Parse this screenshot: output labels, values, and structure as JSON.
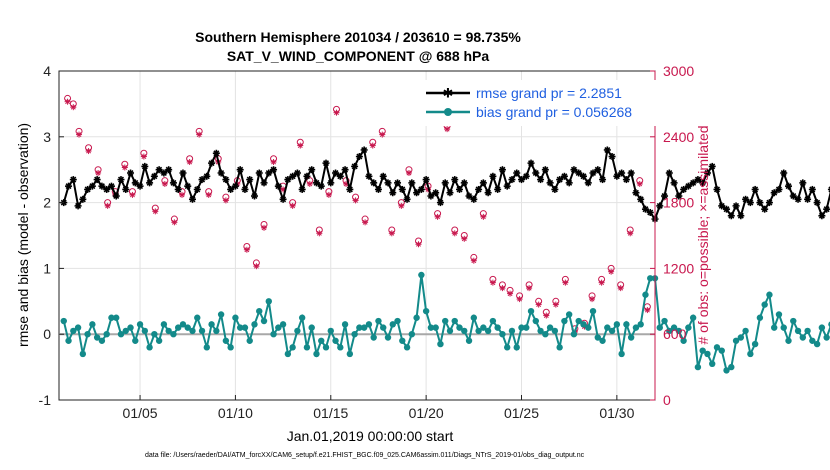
{
  "chart_data": {
    "type": "line",
    "title": "Southern Hemisphere 201034 / 203610 = 98.735%",
    "subtitle": "SAT_V_WIND_COMPONENT @ 688 hPa",
    "xlabel": "Jan.01,2019 00:00:00 start",
    "ylabel_left": "rmse and bias (model - observation)",
    "ylabel_right": "# of obs: o=possible; ×=assimilated",
    "xlim": [
      0.75,
      32.0
    ],
    "ylim_left": [
      -1,
      4
    ],
    "ylim_right": [
      0,
      3000
    ],
    "x_ticks": [
      5,
      10,
      15,
      20,
      25,
      30
    ],
    "x_tick_labels": [
      "01/05",
      "01/10",
      "01/15",
      "01/20",
      "01/25",
      "01/30"
    ],
    "y_ticks_left": [
      -1,
      0,
      1,
      2,
      3,
      4
    ],
    "y_ticks_left_labels": [
      "-1",
      "0",
      "1",
      "2",
      "3",
      "4"
    ],
    "y_ticks_right": [
      0,
      600,
      1200,
      1800,
      2400,
      3000
    ],
    "y_ticks_right_labels": [
      "0",
      "600",
      "1200",
      "1800",
      "2400",
      "3000"
    ],
    "zero_line": 0,
    "time_step_days": 0.25,
    "start_day": 1.0,
    "series": [
      {
        "name": "rmse grand pr = 2.2851",
        "color": "#000000",
        "marker": "asterisk",
        "values": [
          2.0,
          2.25,
          2.35,
          1.95,
          2.05,
          2.2,
          2.25,
          2.35,
          2.25,
          2.2,
          2.25,
          2.1,
          2.35,
          2.2,
          2.45,
          2.3,
          2.25,
          2.55,
          2.3,
          2.4,
          2.5,
          2.45,
          2.5,
          2.3,
          2.2,
          2.45,
          2.25,
          2.05,
          2.2,
          2.35,
          2.4,
          2.6,
          2.75,
          2.45,
          2.35,
          2.2,
          2.25,
          2.5,
          2.2,
          2.35,
          2.1,
          2.45,
          2.3,
          2.45,
          2.5,
          2.25,
          2.05,
          2.35,
          2.4,
          2.45,
          2.2,
          2.4,
          2.5,
          2.3,
          2.25,
          2.6,
          2.3,
          2.45,
          2.4,
          2.5,
          2.2,
          2.55,
          2.7,
          2.8,
          2.4,
          2.3,
          2.2,
          2.4,
          2.3,
          2.15,
          2.3,
          2.2,
          2.05,
          2.3,
          2.15,
          2.2,
          2.35,
          2.1,
          2.15,
          2.0,
          2.3,
          2.15,
          2.35,
          2.2,
          2.3,
          2.1,
          2.05,
          2.2,
          2.3,
          2.15,
          2.4,
          2.2,
          2.5,
          2.25,
          2.35,
          2.45,
          2.35,
          2.4,
          2.6,
          2.45,
          2.35,
          2.5,
          2.3,
          2.2,
          2.35,
          2.4,
          2.3,
          2.5,
          2.45,
          2.4,
          2.3,
          2.45,
          2.5,
          2.35,
          2.8,
          2.7,
          2.4,
          2.45,
          2.35,
          2.45,
          2.15,
          2.05,
          1.9,
          1.85,
          1.75,
          1.95,
          2.1,
          2.45,
          2.3,
          2.1,
          2.2,
          2.25,
          2.3,
          2.35,
          2.3,
          2.45,
          2.55,
          2.2,
          1.95,
          1.9,
          1.8,
          1.95,
          1.8,
          2.05,
          2.0,
          2.2,
          2.0,
          1.9,
          2.0,
          2.15,
          2.2,
          2.45,
          2.25,
          2.1,
          2.05,
          2.3,
          2.05,
          2.2,
          2.0,
          1.8,
          1.9,
          2.2,
          2.5,
          2.15,
          2.45,
          2.3,
          2.05,
          1.9,
          2.0,
          1.8,
          1.75,
          2.05,
          2.0,
          2.0,
          2.05,
          2.1,
          2.25,
          1.85,
          2.0,
          1.95,
          2.0,
          2.1,
          2.2,
          2.05,
          1.95,
          1.85,
          1.8,
          1.95,
          2.05,
          1.95,
          2.0,
          2.15,
          2.05,
          2.1,
          2.15
        ]
      },
      {
        "name": "bias grand pr = 0.056268",
        "color": "#138A8A",
        "marker": "circle",
        "values": [
          0.2,
          -0.1,
          0.05,
          0.1,
          -0.3,
          0.0,
          0.15,
          -0.05,
          -0.1,
          0.0,
          0.25,
          0.25,
          0.0,
          0.05,
          0.1,
          -0.1,
          0.15,
          0.05,
          -0.2,
          0.0,
          -0.1,
          0.15,
          0.05,
          0.0,
          0.1,
          0.15,
          0.1,
          0.05,
          0.25,
          0.05,
          -0.2,
          0.15,
          0.05,
          0.3,
          -0.1,
          -0.2,
          0.25,
          0.1,
          0.1,
          -0.1,
          0.15,
          0.35,
          0.2,
          0.5,
          0.0,
          0.1,
          0.15,
          -0.3,
          -0.2,
          0.05,
          0.25,
          -0.2,
          0.1,
          -0.3,
          -0.1,
          -0.2,
          0.05,
          -0.1,
          -0.2,
          0.15,
          -0.3,
          0.0,
          0.1,
          0.1,
          0.15,
          -0.05,
          0.2,
          0.1,
          -0.05,
          0.15,
          0.2,
          -0.1,
          -0.2,
          0.0,
          0.25,
          0.9,
          0.35,
          0.1,
          0.1,
          -0.15,
          0.2,
          0.05,
          0.2,
          0.1,
          0.05,
          -0.1,
          0.25,
          0.05,
          0.1,
          0.05,
          0.2,
          0.1,
          0.0,
          -0.2,
          0.05,
          -0.2,
          0.1,
          0.1,
          0.35,
          0.2,
          0.05,
          0.0,
          0.1,
          0.05,
          -0.2,
          0.2,
          0.3,
          0.0,
          0.2,
          0.15,
          0.1,
          0.35,
          -0.05,
          -0.1,
          0.1,
          0.05,
          0.15,
          -0.3,
          0.15,
          -0.05,
          0.1,
          0.15,
          0.6,
          0.85,
          0.85,
          0.1,
          0.2,
          0.05,
          0.1,
          0.05,
          -0.1,
          0.1,
          0.25,
          -0.5,
          -0.25,
          -0.3,
          -0.45,
          -0.2,
          -0.25,
          -0.55,
          -0.5,
          -0.1,
          -0.05,
          0.05,
          -0.3,
          -0.15,
          0.25,
          0.45,
          0.6,
          0.1,
          0.3,
          0.1,
          -0.1,
          0.2,
          0.05,
          -0.05,
          0.05,
          -0.1,
          -0.15,
          0.1,
          -0.05,
          0.15,
          0.0,
          0.15,
          0.25,
          0.35,
          0.65,
          0.7,
          0.65,
          0.7,
          0.7,
          0.55,
          0.2,
          -0.1,
          -0.4,
          -0.2,
          -0.1,
          -0.05,
          0.1,
          0.25,
          0.15,
          0.1
        ]
      }
    ],
    "obs_possible": {
      "marker": "o",
      "color": "#C8184E",
      "x": [
        1.2,
        1.5,
        1.8,
        2.3,
        2.8,
        3.3,
        3.7,
        4.2,
        4.6,
        5.2,
        5.8,
        6.3,
        6.8,
        7.2,
        7.6,
        8.1,
        8.6,
        9.1,
        9.5,
        10.1,
        10.6,
        11.1,
        11.5,
        12.0,
        12.5,
        13.0,
        13.4,
        13.9,
        14.4,
        14.9,
        15.3,
        15.8,
        16.3,
        16.8,
        17.2,
        17.7,
        18.2,
        18.7,
        19.1,
        19.6,
        20.1,
        20.6,
        21.1,
        21.5,
        22.0,
        22.5,
        23.0,
        23.5,
        24.0,
        24.4,
        24.9,
        25.4,
        25.9,
        26.3,
        26.8,
        27.3,
        27.8,
        28.3,
        28.7,
        29.2,
        29.7,
        30.2,
        30.7,
        31.2,
        31.6
      ],
      "values": [
        2750,
        2700,
        2450,
        2300,
        2100,
        1800,
        1900,
        2150,
        1900,
        2250,
        1750,
        2000,
        1650,
        1900,
        2200,
        2450,
        1900,
        2200,
        1850,
        2000,
        1400,
        1250,
        1600,
        2200,
        1950,
        1800,
        2350,
        2000,
        1550,
        1900,
        2650,
        2000,
        1850,
        1650,
        2350,
        2450,
        1550,
        1800,
        2100,
        1450,
        1950,
        1700,
        2500,
        1550,
        1500,
        1300,
        1700,
        1100,
        1050,
        1000,
        950,
        1050,
        900,
        800,
        900,
        1100,
        650,
        700,
        950,
        1100,
        1200,
        1050,
        1550,
        2000,
        850
      ]
    },
    "obs_assimilated": {
      "marker": "asterisk",
      "color": "#C8184E",
      "x": [
        1.2,
        1.5,
        1.8,
        2.3,
        2.8,
        3.3,
        3.7,
        4.2,
        4.6,
        5.2,
        5.8,
        6.3,
        6.8,
        7.2,
        7.6,
        8.1,
        8.6,
        9.1,
        9.5,
        10.1,
        10.6,
        11.1,
        11.5,
        12.0,
        12.5,
        13.0,
        13.4,
        13.9,
        14.4,
        14.9,
        15.3,
        15.8,
        16.3,
        16.8,
        17.2,
        17.7,
        18.2,
        18.7,
        19.1,
        19.6,
        20.1,
        20.6,
        21.1,
        21.5,
        22.0,
        22.5,
        23.0,
        23.5,
        24.0,
        24.4,
        24.9,
        25.4,
        25.9,
        26.3,
        26.8,
        27.3,
        27.8,
        28.3,
        28.7,
        29.2,
        29.7,
        30.2,
        30.7,
        31.2,
        31.6
      ],
      "values": [
        2720,
        2670,
        2420,
        2270,
        2070,
        1770,
        1870,
        2120,
        1870,
        2220,
        1720,
        1970,
        1620,
        1870,
        2170,
        2420,
        1870,
        2170,
        1820,
        1970,
        1370,
        1220,
        1570,
        2170,
        1920,
        1770,
        2320,
        1970,
        1520,
        1870,
        2620,
        1970,
        1820,
        1620,
        2320,
        2420,
        1520,
        1770,
        2070,
        1420,
        1920,
        1670,
        2470,
        1520,
        1470,
        1270,
        1670,
        1070,
        1020,
        970,
        920,
        1020,
        870,
        770,
        870,
        1070,
        620,
        670,
        920,
        1070,
        1170,
        1020,
        1520,
        1970,
        820
      ]
    },
    "data_file_note": "data file: /Users/raeder/DAI/ATM_forcXX/CAM6_setup/f.e21.FHIST_BGC.f09_025.CAM6assim.011/Diags_NTrS_2019-01/obs_diag_output.nc"
  }
}
